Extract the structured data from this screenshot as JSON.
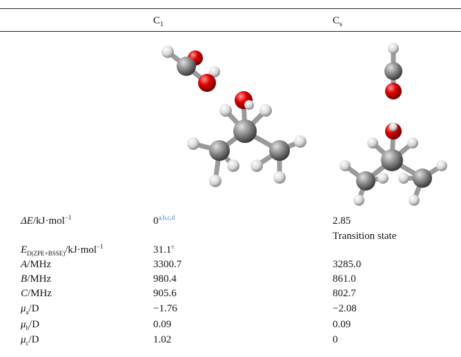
{
  "header": [
    {
      "symbol": "C",
      "sub": "1"
    },
    {
      "symbol": "C",
      "sub": "s"
    }
  ],
  "rows": [
    {
      "label": {
        "symbol": "ΔE",
        "unit": "/kJ·mol",
        "sup": "−1"
      },
      "c1": {
        "text": "0",
        "sup": "a,b,c,d"
      },
      "cs": {
        "text": "2.85",
        "note": "Transition state"
      }
    },
    {
      "label": {
        "symbol": "E",
        "sub": "D(ZPE+BSSE)",
        "unit": "/kJ·mol",
        "sup": "−1"
      },
      "c1": {
        "text": "31.1",
        "sup": "e"
      }
    },
    {
      "label": {
        "symbol": "A",
        "unit": "/MHz"
      },
      "c1": {
        "text": "3300.7"
      },
      "cs": {
        "text": "3285.0"
      }
    },
    {
      "label": {
        "symbol": "B",
        "unit": "/MHz"
      },
      "c1": {
        "text": "980.4"
      },
      "cs": {
        "text": "861.0"
      }
    },
    {
      "label": {
        "symbol": "C",
        "unit": "/MHz"
      },
      "c1": {
        "text": "905.6"
      },
      "cs": {
        "text": "802.7"
      }
    },
    {
      "label": {
        "symbol": "μ",
        "sub": "a",
        "unit": "/D"
      },
      "c1": {
        "text": "−1.76"
      },
      "cs": {
        "text": "−2.08"
      }
    },
    {
      "label": {
        "symbol": "μ",
        "sub": "b",
        "unit": "/D"
      },
      "c1": {
        "text": "0.09"
      },
      "cs": {
        "text": "0.09"
      }
    },
    {
      "label": {
        "symbol": "μ",
        "sub": "c",
        "unit": "/D"
      },
      "c1": {
        "text": "1.02"
      },
      "cs": {
        "text": "0"
      }
    }
  ]
}
